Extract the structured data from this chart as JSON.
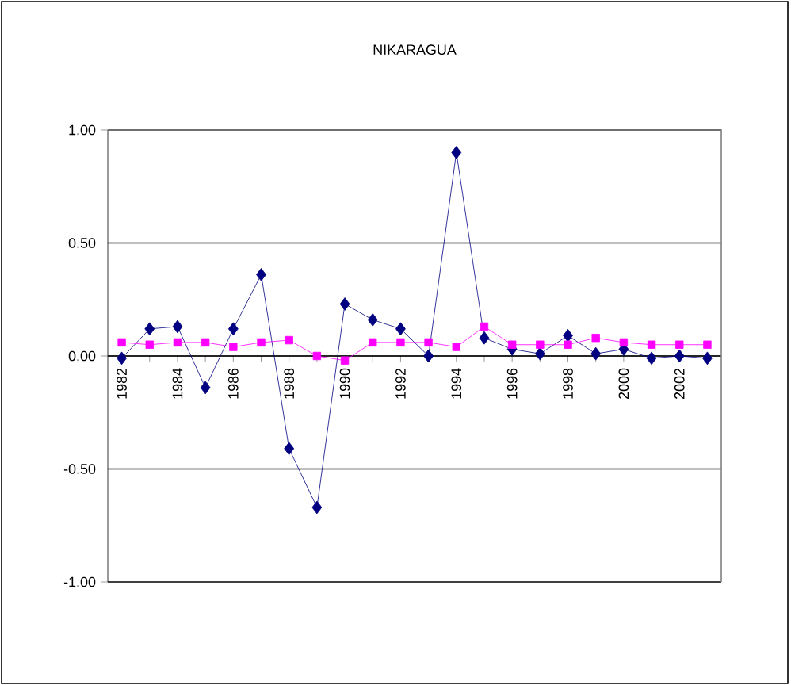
{
  "chart_data": {
    "type": "line",
    "title": "NIKARAGUA",
    "categories": [
      "1982",
      null,
      "1984",
      null,
      "1986",
      null,
      "1988",
      null,
      "1990",
      null,
      "1992",
      null,
      "1994",
      null,
      "1996",
      null,
      "1998",
      null,
      "2000",
      null,
      "2002",
      null
    ],
    "series": [
      {
        "color": "#000080",
        "marker": "diamond",
        "values": [
          -0.01,
          0.12,
          0.13,
          -0.14,
          0.12,
          0.36,
          -0.41,
          -0.67,
          0.23,
          0.16,
          0.12,
          0.0,
          0.9,
          0.08,
          0.03,
          0.01,
          0.09,
          0.01,
          0.03,
          -0.01,
          0.0,
          -0.01
        ]
      },
      {
        "color": "#ff00ff",
        "marker": "square",
        "values": [
          0.06,
          0.05,
          0.06,
          0.06,
          0.04,
          0.06,
          0.07,
          0.0,
          -0.02,
          0.06,
          0.06,
          0.06,
          0.04,
          0.13,
          0.05,
          0.05,
          0.05,
          0.08,
          0.06,
          0.05,
          0.05,
          0.05
        ]
      }
    ],
    "ylim": [
      -1,
      1
    ],
    "yticks": [
      {
        "value": -1,
        "label": "-1.00"
      },
      {
        "value": -0.5,
        "label": "-0.50"
      },
      {
        "value": 0,
        "label": "0.00"
      },
      {
        "value": 0.5,
        "label": "0.50"
      },
      {
        "value": 1,
        "label": "1.00"
      }
    ],
    "grid": "y",
    "line_style": "solid"
  }
}
